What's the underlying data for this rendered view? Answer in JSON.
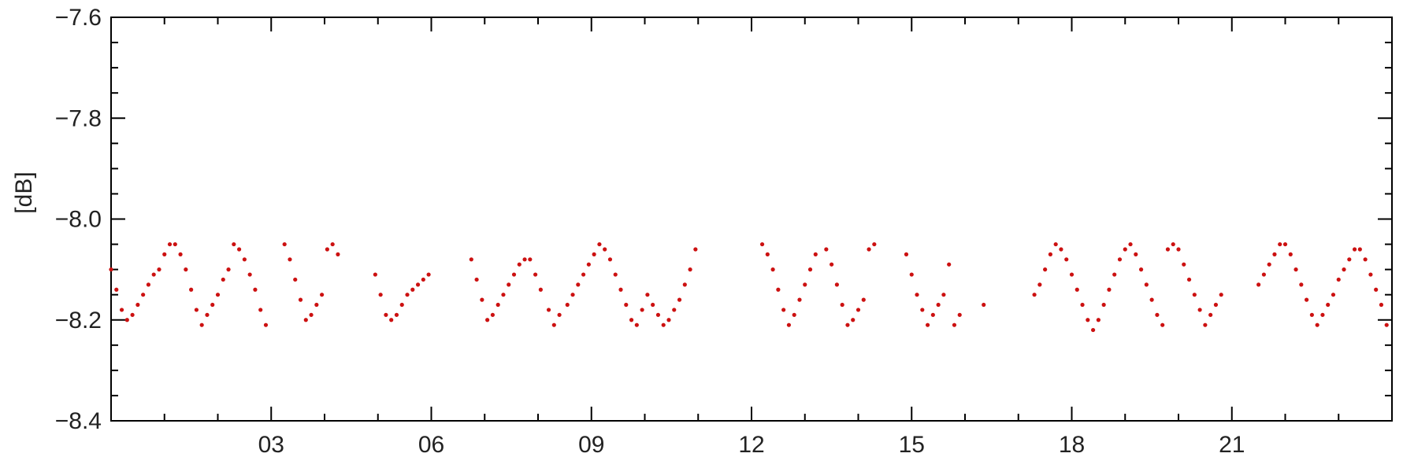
{
  "chart_data": {
    "type": "scatter",
    "title": "",
    "xlabel": "",
    "ylabel": "[dB]",
    "xlim": [
      0,
      24
    ],
    "ylim": [
      -8.4,
      -7.6
    ],
    "grid": false,
    "legend": "none",
    "marker_color": "#cc1111",
    "xticks": [
      {
        "value": 3,
        "label": "03"
      },
      {
        "value": 6,
        "label": "06"
      },
      {
        "value": 9,
        "label": "09"
      },
      {
        "value": 12,
        "label": "12"
      },
      {
        "value": 15,
        "label": "15"
      },
      {
        "value": 18,
        "label": "18"
      },
      {
        "value": 21,
        "label": "21"
      }
    ],
    "yticks": [
      {
        "value": -8.4,
        "label": "−8.4"
      },
      {
        "value": -8.2,
        "label": "−8.2"
      },
      {
        "value": -8.0,
        "label": "−8.0"
      },
      {
        "value": -7.8,
        "label": "−7.8"
      },
      {
        "value": -7.6,
        "label": "−7.6"
      }
    ],
    "series": [
      {
        "x": [
          0.0,
          0.1,
          0.2,
          0.3,
          0.4,
          0.5,
          0.6,
          0.7,
          0.8,
          0.9,
          1.0,
          1.1,
          1.2,
          1.3,
          1.4,
          1.5,
          1.6,
          1.7,
          1.8,
          1.9,
          2.0,
          2.1,
          2.2,
          2.3,
          2.4,
          2.5,
          2.6,
          2.7,
          2.8,
          2.9,
          3.25,
          3.35,
          3.45,
          3.55,
          3.65,
          3.75,
          3.85,
          3.95,
          4.05,
          4.15,
          4.25,
          4.95,
          5.05,
          5.15,
          5.25,
          5.35,
          5.45,
          5.55,
          5.65,
          5.75,
          5.85,
          5.95,
          6.75,
          6.85,
          6.95,
          7.05,
          7.15,
          7.25,
          7.35,
          7.45,
          7.55,
          7.65,
          7.75,
          7.85,
          7.95,
          8.05,
          8.2,
          8.3,
          8.4,
          8.55,
          8.65,
          8.75,
          8.85,
          8.95,
          9.05,
          9.15,
          9.25,
          9.35,
          9.45,
          9.55,
          9.65,
          9.75,
          9.85,
          9.95,
          10.05,
          10.15,
          10.25,
          10.35,
          10.45,
          10.55,
          10.65,
          10.75,
          10.85,
          10.95,
          12.2,
          12.3,
          12.4,
          12.5,
          12.6,
          12.7,
          12.8,
          12.9,
          13.0,
          13.1,
          13.2,
          13.4,
          13.5,
          13.6,
          13.7,
          13.8,
          13.9,
          14.0,
          14.1,
          14.2,
          14.3,
          14.9,
          15.0,
          15.1,
          15.2,
          15.3,
          15.4,
          15.5,
          15.6,
          15.7,
          15.8,
          15.9,
          16.35,
          17.3,
          17.4,
          17.5,
          17.6,
          17.7,
          17.8,
          17.9,
          18.0,
          18.1,
          18.2,
          18.3,
          18.4,
          18.5,
          18.6,
          18.7,
          18.8,
          18.9,
          19.0,
          19.1,
          19.2,
          19.3,
          19.4,
          19.5,
          19.6,
          19.7,
          19.8,
          19.9,
          20.0,
          20.1,
          20.2,
          20.3,
          20.4,
          20.5,
          20.6,
          20.7,
          20.8,
          21.5,
          21.6,
          21.7,
          21.8,
          21.9,
          22.0,
          22.1,
          22.2,
          22.3,
          22.4,
          22.5,
          22.6,
          22.7,
          22.8,
          22.9,
          23.0,
          23.1,
          23.2,
          23.3,
          23.4,
          23.5,
          23.6,
          23.7,
          23.8,
          23.9
        ],
        "y": [
          -8.1,
          -8.14,
          -8.18,
          -8.2,
          -8.19,
          -8.17,
          -8.15,
          -8.13,
          -8.11,
          -8.1,
          -8.07,
          -8.05,
          -8.05,
          -8.07,
          -8.1,
          -8.14,
          -8.18,
          -8.21,
          -8.19,
          -8.17,
          -8.15,
          -8.12,
          -8.1,
          -8.05,
          -8.06,
          -8.08,
          -8.11,
          -8.14,
          -8.18,
          -8.21,
          -8.05,
          -8.08,
          -8.12,
          -8.16,
          -8.2,
          -8.19,
          -8.17,
          -8.15,
          -8.06,
          -8.05,
          -8.07,
          -8.11,
          -8.15,
          -8.19,
          -8.2,
          -8.19,
          -8.17,
          -8.15,
          -8.14,
          -8.13,
          -8.12,
          -8.11,
          -8.08,
          -8.12,
          -8.16,
          -8.2,
          -8.19,
          -8.17,
          -8.15,
          -8.13,
          -8.11,
          -8.09,
          -8.08,
          -8.08,
          -8.11,
          -8.14,
          -8.18,
          -8.21,
          -8.19,
          -8.17,
          -8.15,
          -8.13,
          -8.11,
          -8.09,
          -8.07,
          -8.05,
          -8.06,
          -8.08,
          -8.11,
          -8.14,
          -8.17,
          -8.2,
          -8.21,
          -8.18,
          -8.15,
          -8.17,
          -8.19,
          -8.21,
          -8.2,
          -8.18,
          -8.16,
          -8.13,
          -8.1,
          -8.06,
          -8.05,
          -8.07,
          -8.1,
          -8.14,
          -8.18,
          -8.21,
          -8.19,
          -8.16,
          -8.13,
          -8.1,
          -8.07,
          -8.06,
          -8.09,
          -8.13,
          -8.17,
          -8.21,
          -8.2,
          -8.18,
          -8.16,
          -8.06,
          -8.05,
          -8.07,
          -8.11,
          -8.15,
          -8.18,
          -8.21,
          -8.19,
          -8.17,
          -8.15,
          -8.09,
          -8.21,
          -8.19,
          -8.17,
          -8.15,
          -8.13,
          -8.1,
          -8.07,
          -8.05,
          -8.06,
          -8.08,
          -8.11,
          -8.14,
          -8.17,
          -8.2,
          -8.22,
          -8.2,
          -8.17,
          -8.14,
          -8.11,
          -8.08,
          -8.06,
          -8.05,
          -8.07,
          -8.1,
          -8.13,
          -8.16,
          -8.19,
          -8.21,
          -8.06,
          -8.05,
          -8.06,
          -8.09,
          -8.12,
          -8.15,
          -8.18,
          -8.21,
          -8.19,
          -8.17,
          -8.15,
          -8.13,
          -8.11,
          -8.09,
          -8.07,
          -8.05,
          -8.05,
          -8.07,
          -8.1,
          -8.13,
          -8.16,
          -8.19,
          -8.21,
          -8.19,
          -8.17,
          -8.15,
          -8.12,
          -8.1,
          -8.08,
          -8.06,
          -8.06,
          -8.08,
          -8.11,
          -8.14,
          -8.17,
          -8.21
        ]
      }
    ]
  }
}
